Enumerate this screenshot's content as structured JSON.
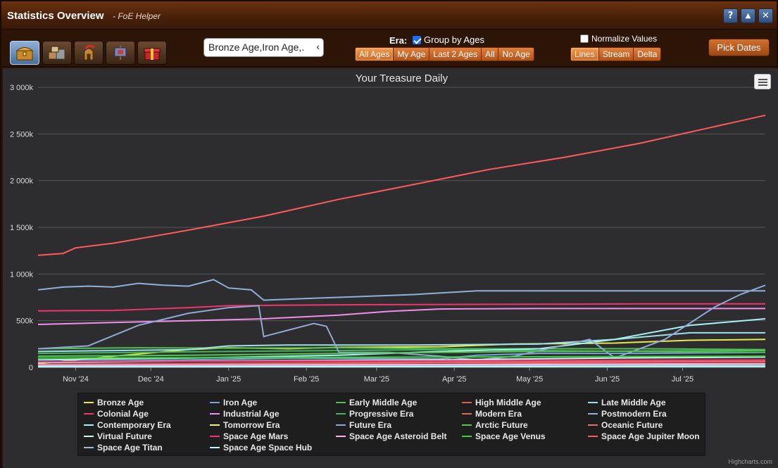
{
  "window": {
    "title": "Statistics Overview",
    "subtitle": "- FoE Helper",
    "controls": {
      "help": "?",
      "minimize": "▲",
      "close": "✕"
    }
  },
  "toolbar": {
    "tabs": [
      {
        "icon": "treasure-chest-icon",
        "active": true
      },
      {
        "icon": "goods-crates-icon",
        "active": false
      },
      {
        "icon": "spartan-helmet-icon",
        "active": false
      },
      {
        "icon": "military-banner-icon",
        "active": false
      },
      {
        "icon": "gift-box-icon",
        "active": false
      }
    ],
    "era_select_value": "Bronze Age,Iron Age,.",
    "era_label": "Era:",
    "group_by_ages": {
      "label": "Group by Ages",
      "checked": true
    },
    "era_filters": [
      {
        "label": "All Ages",
        "active": true
      },
      {
        "label": "My Age",
        "active": false
      },
      {
        "label": "Last 2 Ages",
        "active": false
      },
      {
        "label": "All",
        "active": false
      },
      {
        "label": "No Age",
        "active": false
      }
    ],
    "normalize": {
      "label": "Normalize Values",
      "checked": false
    },
    "view_modes": [
      {
        "label": "Lines",
        "active": true
      },
      {
        "label": "Stream",
        "active": false
      },
      {
        "label": "Delta",
        "active": false
      }
    ],
    "pick_dates_label": "Pick Dates"
  },
  "chart_data": {
    "type": "line",
    "title": "Your Treasure Daily",
    "y_ticks": [
      "0",
      "500k",
      "1 000k",
      "1 500k",
      "2 000k",
      "2 500k",
      "3 000k"
    ],
    "ylim": [
      0,
      3000000
    ],
    "x_ticks": [
      {
        "label": "Nov '24",
        "day": 15
      },
      {
        "label": "Dec '24",
        "day": 45
      },
      {
        "label": "Jan '25",
        "day": 76
      },
      {
        "label": "Feb '25",
        "day": 107
      },
      {
        "label": "Mar '25",
        "day": 135
      },
      {
        "label": "Apr '25",
        "day": 166
      },
      {
        "label": "May '25",
        "day": 196
      },
      {
        "label": "Jun '25",
        "day": 227
      },
      {
        "label": "Jul '25",
        "day": 257
      }
    ],
    "xlim": [
      0,
      290
    ],
    "grid": true,
    "legend_position": "bottom",
    "series": [
      {
        "name": "Bronze Age",
        "color": "#e8e84a",
        "points": [
          [
            0,
            40000
          ],
          [
            30,
            120000
          ],
          [
            60,
            190000
          ],
          [
            76,
            210000
          ],
          [
            100,
            200000
          ],
          [
            120,
            215000
          ],
          [
            160,
            220000
          ],
          [
            190,
            250000
          ],
          [
            230,
            260000
          ],
          [
            260,
            290000
          ],
          [
            290,
            300000
          ]
        ]
      },
      {
        "name": "Iron Age",
        "color": "#7aa3d6",
        "points": [
          [
            0,
            60000
          ],
          [
            60,
            80000
          ],
          [
            100,
            100000
          ],
          [
            160,
            90000
          ],
          [
            175,
            130000
          ],
          [
            200,
            150000
          ],
          [
            240,
            150000
          ],
          [
            290,
            160000
          ]
        ]
      },
      {
        "name": "Early Middle Age",
        "color": "#4fbf4f",
        "points": [
          [
            0,
            200000
          ],
          [
            40,
            210000
          ],
          [
            76,
            205000
          ],
          [
            120,
            210000
          ],
          [
            160,
            200000
          ],
          [
            200,
            200000
          ],
          [
            240,
            200000
          ],
          [
            290,
            190000
          ]
        ]
      },
      {
        "name": "High Middle Age",
        "color": "#e05a4f",
        "points": [
          [
            0,
            20000
          ],
          [
            60,
            30000
          ],
          [
            120,
            40000
          ],
          [
            160,
            50000
          ],
          [
            200,
            50000
          ],
          [
            290,
            60000
          ]
        ]
      },
      {
        "name": "Late Middle Age",
        "color": "#9fe0e8",
        "points": [
          [
            0,
            170000
          ],
          [
            30,
            180000
          ],
          [
            60,
            190000
          ],
          [
            76,
            230000
          ],
          [
            100,
            240000
          ],
          [
            150,
            240000
          ],
          [
            200,
            250000
          ],
          [
            230,
            300000
          ],
          [
            260,
            370000
          ],
          [
            290,
            370000
          ]
        ]
      },
      {
        "name": "Colonial Age",
        "color": "#f0336b",
        "points": [
          [
            0,
            605000
          ],
          [
            30,
            610000
          ],
          [
            60,
            640000
          ],
          [
            76,
            660000
          ],
          [
            120,
            670000
          ],
          [
            180,
            675000
          ],
          [
            240,
            680000
          ],
          [
            290,
            680000
          ]
        ]
      },
      {
        "name": "Industrial Age",
        "color": "#f08ee8",
        "points": [
          [
            0,
            460000
          ],
          [
            30,
            480000
          ],
          [
            60,
            500000
          ],
          [
            90,
            520000
          ],
          [
            120,
            560000
          ],
          [
            140,
            600000
          ],
          [
            160,
            625000
          ],
          [
            200,
            630000
          ],
          [
            290,
            630000
          ]
        ]
      },
      {
        "name": "Progressive Era",
        "color": "#3fb85a",
        "points": [
          [
            0,
            150000
          ],
          [
            40,
            160000
          ],
          [
            76,
            170000
          ],
          [
            120,
            180000
          ],
          [
            160,
            190000
          ],
          [
            200,
            180000
          ],
          [
            240,
            170000
          ],
          [
            290,
            160000
          ]
        ]
      },
      {
        "name": "Modern Era",
        "color": "#e06a5a",
        "points": [
          [
            0,
            30000
          ],
          [
            60,
            40000
          ],
          [
            120,
            50000
          ],
          [
            200,
            60000
          ],
          [
            290,
            70000
          ]
        ]
      },
      {
        "name": "Postmodern Era",
        "color": "#8fb0d8",
        "points": [
          [
            0,
            830000
          ],
          [
            10,
            860000
          ],
          [
            20,
            870000
          ],
          [
            30,
            860000
          ],
          [
            40,
            900000
          ],
          [
            50,
            880000
          ],
          [
            60,
            870000
          ],
          [
            70,
            940000
          ],
          [
            76,
            850000
          ],
          [
            85,
            830000
          ],
          [
            90,
            720000
          ],
          [
            110,
            740000
          ],
          [
            150,
            780000
          ],
          [
            175,
            820000
          ],
          [
            200,
            820000
          ],
          [
            290,
            820000
          ]
        ]
      },
      {
        "name": "Contemporary Era",
        "color": "#a6f2f2",
        "points": [
          [
            0,
            80000
          ],
          [
            60,
            100000
          ],
          [
            120,
            130000
          ],
          [
            160,
            170000
          ],
          [
            200,
            200000
          ],
          [
            230,
            300000
          ],
          [
            260,
            450000
          ],
          [
            290,
            520000
          ]
        ]
      },
      {
        "name": "Tomorrow Era",
        "color": "#f2f27a",
        "points": [
          [
            0,
            10000
          ],
          [
            100,
            15000
          ],
          [
            200,
            20000
          ],
          [
            290,
            25000
          ]
        ]
      },
      {
        "name": "Future Era",
        "color": "#8fa8d6",
        "points": [
          [
            0,
            200000
          ],
          [
            20,
            230000
          ],
          [
            40,
            450000
          ],
          [
            60,
            580000
          ],
          [
            76,
            640000
          ],
          [
            88,
            660000
          ],
          [
            90,
            330000
          ],
          [
            100,
            400000
          ],
          [
            110,
            470000
          ],
          [
            115,
            440000
          ],
          [
            120,
            160000
          ],
          [
            140,
            160000
          ],
          [
            160,
            120000
          ],
          [
            175,
            80000
          ],
          [
            190,
            120000
          ],
          [
            220,
            300000
          ],
          [
            230,
            100000
          ],
          [
            250,
            300000
          ],
          [
            270,
            650000
          ],
          [
            280,
            780000
          ],
          [
            290,
            880000
          ]
        ]
      },
      {
        "name": "Arctic Future",
        "color": "#55c455",
        "points": [
          [
            0,
            120000
          ],
          [
            60,
            130000
          ],
          [
            120,
            150000
          ],
          [
            200,
            170000
          ],
          [
            290,
            180000
          ]
        ]
      },
      {
        "name": "Oceanic Future",
        "color": "#e87070",
        "points": [
          [
            0,
            5000
          ],
          [
            150,
            10000
          ],
          [
            290,
            15000
          ]
        ]
      },
      {
        "name": "Virtual Future",
        "color": "#c8f7f7",
        "points": [
          [
            0,
            50000
          ],
          [
            80,
            70000
          ],
          [
            160,
            80000
          ],
          [
            230,
            100000
          ],
          [
            290,
            110000
          ]
        ]
      },
      {
        "name": "Space Age Mars",
        "color": "#ff2e7a",
        "points": [
          [
            0,
            60000
          ],
          [
            150,
            70000
          ],
          [
            290,
            80000
          ]
        ]
      },
      {
        "name": "Space Age Asteroid Belt",
        "color": "#ffb0f0",
        "points": [
          [
            0,
            20000
          ],
          [
            150,
            30000
          ],
          [
            290,
            40000
          ]
        ]
      },
      {
        "name": "Space Age Venus",
        "color": "#3cd03c",
        "points": [
          [
            0,
            100000
          ],
          [
            150,
            110000
          ],
          [
            290,
            120000
          ]
        ]
      },
      {
        "name": "Space Age Jupiter Moon",
        "color": "#ff5a5a",
        "points": [
          [
            0,
            1200000
          ],
          [
            10,
            1220000
          ],
          [
            15,
            1280000
          ],
          [
            30,
            1330000
          ],
          [
            60,
            1470000
          ],
          [
            90,
            1620000
          ],
          [
            120,
            1800000
          ],
          [
            150,
            1960000
          ],
          [
            180,
            2120000
          ],
          [
            210,
            2250000
          ],
          [
            240,
            2400000
          ],
          [
            260,
            2520000
          ],
          [
            280,
            2640000
          ],
          [
            290,
            2700000
          ]
        ]
      },
      {
        "name": "Space Age Titan",
        "color": "#9fb8d8",
        "points": [
          [
            0,
            10000
          ],
          [
            150,
            15000
          ],
          [
            290,
            20000
          ]
        ]
      },
      {
        "name": "Space Age Space Hub",
        "color": "#b8ffff",
        "points": [
          [
            0,
            5000
          ],
          [
            150,
            8000
          ],
          [
            290,
            10000
          ]
        ]
      }
    ],
    "credits": "Highcharts.com"
  }
}
